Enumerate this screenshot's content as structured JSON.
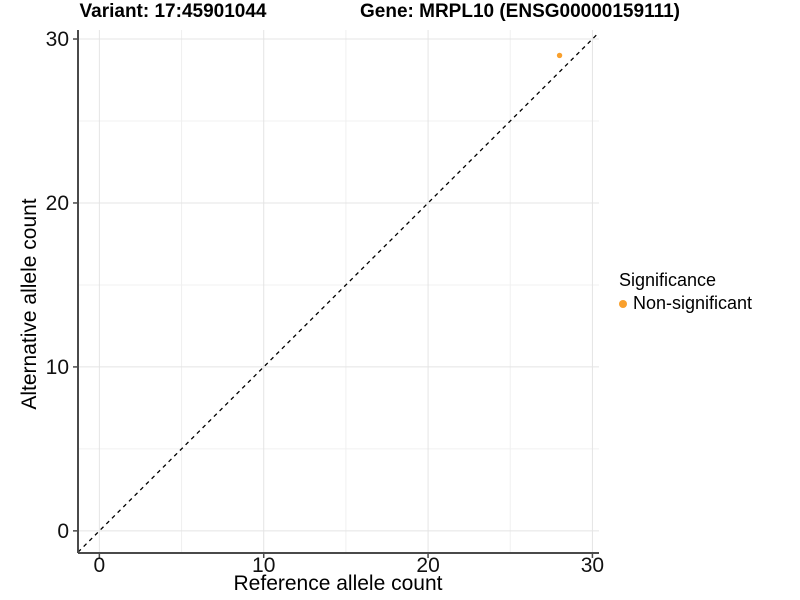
{
  "chart_data": {
    "type": "scatter",
    "title_left": "Variant: 17:45901044",
    "title_right": "Gene: MRPL10 (ENSG00000159111)",
    "xlabel": "Reference allele count",
    "ylabel": "Alternative allele count",
    "x_ticks": [
      0,
      10,
      20,
      30
    ],
    "y_ticks": [
      0,
      10,
      20,
      30
    ],
    "x_minor_ticks": [
      5,
      15,
      25
    ],
    "y_minor_ticks": [
      5,
      15,
      25
    ],
    "xlim": [
      -1.3,
      30.4
    ],
    "ylim": [
      -1.35,
      30.55
    ],
    "grid": "major+minor",
    "legend_position": "right",
    "identity_line": {
      "equation": "y = x",
      "style": "dashed",
      "color": "#000000"
    },
    "series": [
      {
        "name": "Non-significant",
        "color": "#F9A02D",
        "points": [
          {
            "x": 28,
            "y": 29
          }
        ]
      }
    ],
    "legend": {
      "title": "Significance",
      "entries": [
        {
          "label": "Non-significant",
          "color": "#F9A02D"
        }
      ]
    }
  },
  "colors": {
    "background": "#FFFFFF",
    "axis_line": "#4A4A4A",
    "tick_text": "#111111",
    "grid_major": "#E4E4E4",
    "grid_minor": "#F0F0F0",
    "point": "#F9A02D",
    "identity_line": "#000000"
  }
}
